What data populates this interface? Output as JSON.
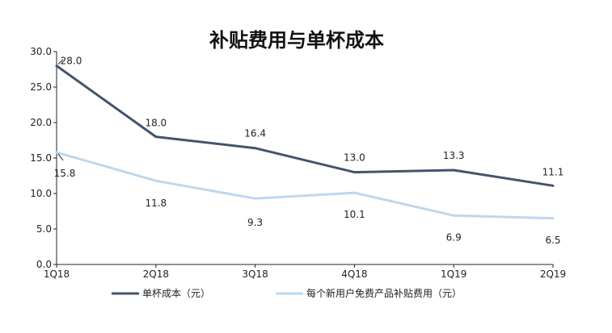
{
  "chart_data": {
    "type": "line",
    "title": "补贴费用与单杯成本",
    "categories": [
      "1Q18",
      "2Q18",
      "3Q18",
      "4Q18",
      "1Q19",
      "2Q19"
    ],
    "ylim": [
      0,
      30
    ],
    "yticks": [
      "0.0",
      "5.0",
      "10.0",
      "15.0",
      "20.0",
      "25.0",
      "30.0"
    ],
    "grid": false,
    "legend_position": "bottom",
    "series": [
      {
        "name": "单杯成本（元）",
        "color": "#44546a",
        "values": [
          28.0,
          18.0,
          16.4,
          13.0,
          13.3,
          11.1
        ],
        "labels": [
          "28.0",
          "18.0",
          "16.4",
          "13.0",
          "13.3",
          "11.1"
        ]
      },
      {
        "name": "每个新用户免费产品补贴费用（元）",
        "color": "#bdd7ee",
        "values": [
          15.8,
          11.8,
          9.3,
          10.1,
          6.9,
          6.5
        ],
        "labels": [
          "15.8",
          "11.8",
          "9.3",
          "10.1",
          "6.9",
          "6.5"
        ]
      }
    ]
  }
}
